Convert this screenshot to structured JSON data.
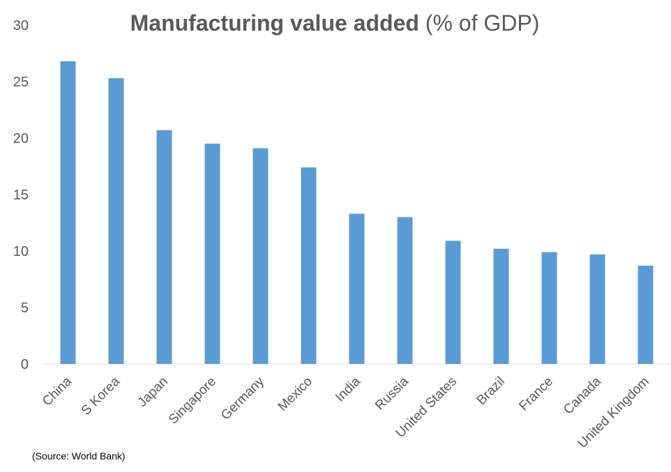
{
  "chart_data": {
    "type": "bar",
    "title": "Manufacturing value added",
    "subtitle": "(% of GDP)",
    "xlabel": "",
    "ylabel": "",
    "categories": [
      "China",
      "S Korea",
      "Japan",
      "Singapore",
      "Germany",
      "Mexico",
      "India",
      "Russia",
      "United States",
      "Brazil",
      "France",
      "Canada",
      "United Kingdom"
    ],
    "values": [
      26.8,
      25.3,
      20.7,
      19.5,
      19.1,
      17.4,
      13.3,
      13.0,
      10.9,
      10.2,
      9.9,
      9.7,
      8.7
    ],
    "ylim": [
      0,
      30
    ],
    "yticks": [
      0,
      5,
      10,
      15,
      20,
      25,
      30
    ],
    "grid": false,
    "legend": "none",
    "bar_color": "#5B9BD5",
    "annotation": "(Source: World Bank)"
  }
}
